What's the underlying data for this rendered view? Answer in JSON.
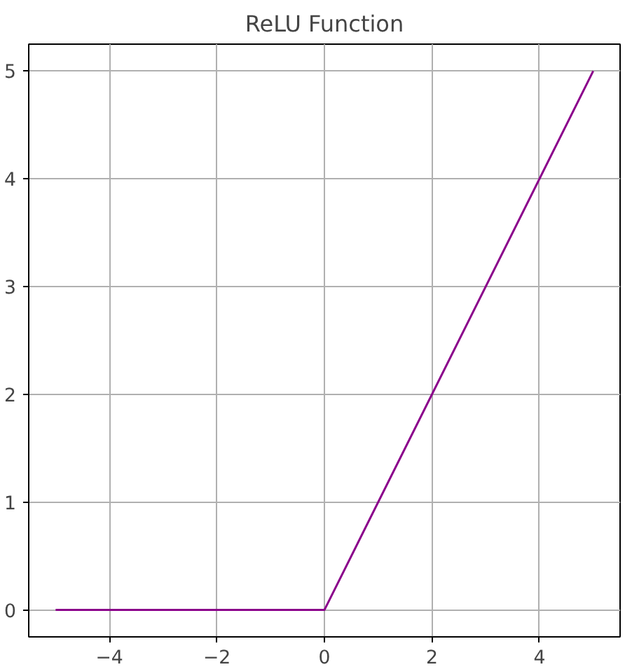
{
  "chart_data": {
    "type": "line",
    "title": "ReLU Function",
    "x": [
      -5,
      0,
      5
    ],
    "series": [
      {
        "color": "#8b008b",
        "values": [
          0,
          0,
          5
        ]
      }
    ],
    "xlim": [
      -5.5,
      5.5
    ],
    "ylim": [
      -0.25,
      5.25
    ],
    "xticks": [
      {
        "value": -4,
        "label": "−4"
      },
      {
        "value": -2,
        "label": "−2"
      },
      0,
      2,
      4
    ],
    "yticks": [
      0,
      1,
      2,
      3,
      4,
      5
    ],
    "grid": true
  }
}
